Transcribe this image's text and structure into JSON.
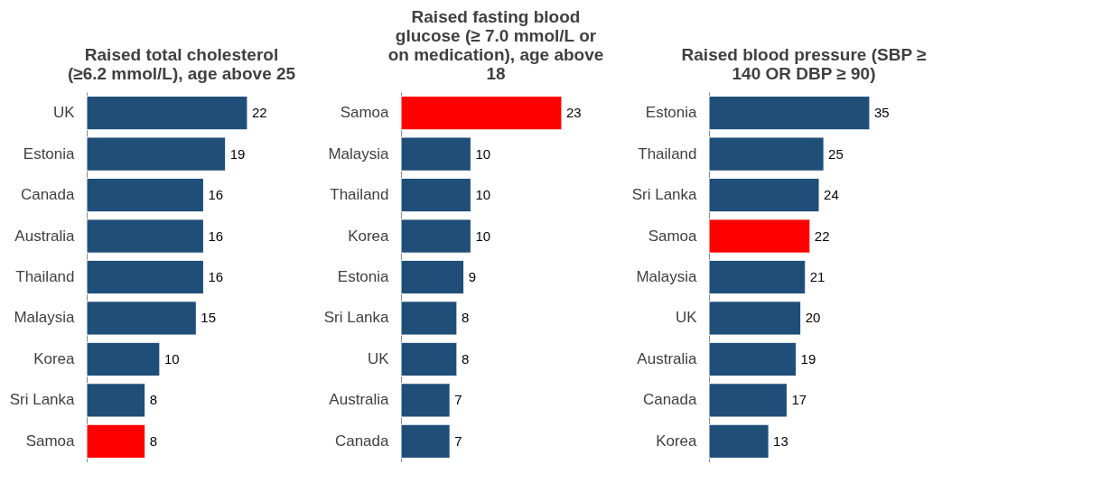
{
  "chart_data": [
    {
      "type": "bar",
      "orientation": "horizontal",
      "title": "Raised total cholesterol (≥6.2 mmol/L), age above 25",
      "categories": [
        "UK",
        "Estonia",
        "Canada",
        "Australia",
        "Thailand",
        "Malaysia",
        "Korea",
        "Sri Lanka",
        "Samoa"
      ],
      "values": [
        22,
        19,
        16,
        16,
        16,
        15,
        10,
        8,
        8
      ],
      "colors": [
        "#1f4e79",
        "#1f4e79",
        "#1f4e79",
        "#1f4e79",
        "#1f4e79",
        "#1f4e79",
        "#1f4e79",
        "#1f4e79",
        "#ff0000"
      ],
      "data_labels": true,
      "tick_labels": "y"
    },
    {
      "type": "bar",
      "orientation": "horizontal",
      "title": "Raised fasting blood glucose (≥ 7.0 mmol/L or on medication), age above 18",
      "categories": [
        "Samoa",
        "Malaysia",
        "Thailand",
        "Korea",
        "Estonia",
        "Sri Lanka",
        "UK",
        "Australia",
        "Canada"
      ],
      "values": [
        23,
        10,
        10,
        10,
        9,
        8,
        8,
        7,
        7
      ],
      "colors": [
        "#ff0000",
        "#1f4e79",
        "#1f4e79",
        "#1f4e79",
        "#1f4e79",
        "#1f4e79",
        "#1f4e79",
        "#1f4e79",
        "#1f4e79"
      ],
      "data_labels": true,
      "tick_labels": "y"
    },
    {
      "type": "bar",
      "orientation": "horizontal",
      "title": "Raised blood pressure (SBP ≥ 140 OR DBP ≥ 90)",
      "categories": [
        "Estonia",
        "Thailand",
        "Sri Lanka",
        "Samoa",
        "Malaysia",
        "UK",
        "Australia",
        "Canada",
        "Korea"
      ],
      "values": [
        35,
        25,
        24,
        22,
        21,
        20,
        19,
        17,
        13
      ],
      "colors": [
        "#1f4e79",
        "#1f4e79",
        "#1f4e79",
        "#ff0000",
        "#1f4e79",
        "#1f4e79",
        "#1f4e79",
        "#1f4e79",
        "#1f4e79"
      ],
      "data_labels": true,
      "tick_labels": "y"
    }
  ]
}
